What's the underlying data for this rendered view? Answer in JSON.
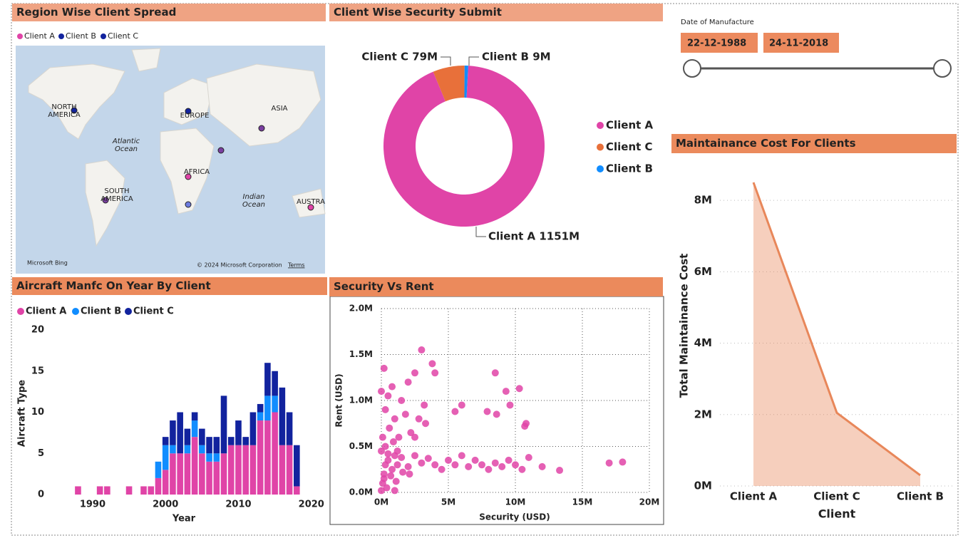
{
  "chart_data": [
    {
      "type": "map",
      "title": "Region Wise Client Spread",
      "series": [
        {
          "name": "Client A",
          "color": "#e044a7"
        },
        {
          "name": "Client B",
          "color": "#12239e"
        },
        {
          "name": "Client C",
          "color": "#12239e"
        }
      ],
      "labels": [
        "NORTH\nAMERICA",
        "EUROPE",
        "ASIA",
        "Atlantic\nOcean",
        "AFRICA",
        "SOUTH\nAMERICA",
        "Indian\nOcean",
        "AUSTRA"
      ],
      "attribution": [
        "Microsoft Bing",
        "© 2024 Microsoft Corporation",
        "Terms"
      ]
    },
    {
      "type": "pie",
      "title": "Client Wise Security Submit",
      "categories": [
        "Client A",
        "Client C",
        "Client B"
      ],
      "values": [
        1151,
        79,
        9
      ],
      "value_labels": [
        "Client A 1151M",
        "Client C 79M",
        "Client B 9M"
      ],
      "colors": [
        "#e044a7",
        "#e8703a",
        "#118dff"
      ]
    },
    {
      "type": "bar",
      "stacked": true,
      "title": "Aircraft Manfc On Year By Client",
      "x_label": "Year",
      "y_label": "Aircraft Type",
      "x": [
        1988,
        1991,
        1992,
        1995,
        1997,
        1998,
        1999,
        2000,
        2001,
        2002,
        2003,
        2004,
        2005,
        2006,
        2007,
        2008,
        2009,
        2010,
        2011,
        2012,
        2013,
        2014,
        2015,
        2016,
        2017,
        2018
      ],
      "series": [
        {
          "name": "Client A",
          "color": "#e044a7",
          "values": [
            1,
            1,
            1,
            1,
            1,
            1,
            2,
            3,
            5,
            5,
            5,
            7,
            5,
            4,
            4,
            5,
            6,
            6,
            6,
            6,
            9,
            9,
            10,
            6,
            6,
            1
          ]
        },
        {
          "name": "Client B",
          "color": "#118dff",
          "values": [
            0,
            0,
            0,
            0,
            0,
            0,
            2,
            3,
            1,
            0,
            1,
            2,
            1,
            1,
            1,
            0,
            0,
            0,
            0,
            0,
            1,
            3,
            2,
            0,
            0,
            0
          ]
        },
        {
          "name": "Client C",
          "color": "#12239e",
          "values": [
            0,
            0,
            0,
            0,
            0,
            0,
            0,
            1,
            3,
            5,
            2,
            1,
            2,
            2,
            2,
            7,
            1,
            3,
            1,
            4,
            1,
            4,
            3,
            7,
            4,
            5
          ]
        }
      ],
      "xlim": [
        1986,
        2021
      ],
      "xticks": [
        1990,
        2000,
        2010,
        2020
      ],
      "ylim": [
        0,
        20
      ],
      "yticks": [
        0,
        5,
        10,
        15,
        20
      ]
    },
    {
      "type": "scatter",
      "title": "Security Vs Rent",
      "x_label": "Security (USD)",
      "y_label": "Rent (USD)",
      "color": "#e044a7",
      "grid": true,
      "x": [
        0,
        0.1,
        0.2,
        0.3,
        0.5,
        0.8,
        1,
        1.2,
        1.5,
        2,
        2.5,
        3,
        3.5,
        4,
        4.5,
        5,
        5.5,
        6,
        6.5,
        7,
        7.5,
        8,
        8.5,
        9,
        9.5,
        10,
        10.5,
        11,
        12,
        13.3,
        17,
        18,
        0.2,
        0.5,
        1,
        1.5,
        2,
        2.5,
        3,
        3.2,
        3.8,
        4,
        0.1,
        0.3,
        0.6,
        0.9,
        1.3,
        1.8,
        2.2,
        2.8,
        3.3,
        8.5,
        8.6,
        9.3,
        10.3,
        10.7,
        10.8,
        6,
        5.5,
        7.9,
        9.6,
        0,
        0.2,
        0.4,
        0.7,
        1.1,
        1.6,
        2.1,
        0,
        0.3,
        0.8,
        1.2,
        2.5,
        0.5,
        1
      ],
      "y": [
        0.02,
        0.1,
        0.2,
        0.3,
        0.35,
        0.25,
        0.4,
        0.3,
        0.38,
        0.28,
        0.4,
        0.32,
        0.37,
        0.3,
        0.25,
        0.35,
        0.3,
        0.4,
        0.28,
        0.35,
        0.3,
        0.25,
        0.32,
        0.28,
        0.35,
        0.3,
        0.25,
        0.38,
        0.28,
        0.24,
        0.32,
        0.33,
        1.35,
        1.05,
        0.8,
        1.0,
        1.2,
        1.3,
        1.55,
        0.95,
        1.4,
        1.3,
        0.6,
        0.5,
        0.7,
        0.55,
        0.6,
        0.85,
        0.65,
        0.8,
        0.75,
        1.3,
        0.85,
        1.1,
        1.13,
        0.72,
        0.75,
        0.95,
        0.88,
        0.88,
        0.95,
        0.45,
        0.15,
        0.05,
        0.18,
        0.12,
        0.22,
        0.2,
        1.1,
        0.9,
        1.15,
        0.45,
        0.6,
        0.42,
        0.02
      ],
      "xlim": [
        0,
        20
      ],
      "xticks": [
        {
          "value": 0,
          "label": "0M"
        },
        {
          "value": 5,
          "label": "5M"
        },
        {
          "value": 10,
          "label": "10M"
        },
        {
          "value": 15,
          "label": "15M"
        },
        {
          "value": 20,
          "label": "20M"
        }
      ],
      "ylim": [
        0,
        2
      ],
      "yticks": [
        {
          "value": 0,
          "label": "0.0M"
        },
        {
          "value": 0.5,
          "label": "0.5M"
        },
        {
          "value": 1,
          "label": "1.0M"
        },
        {
          "value": 1.5,
          "label": "1.5M"
        },
        {
          "value": 2,
          "label": "2.0M"
        }
      ]
    },
    {
      "type": "area",
      "title": "Maintainance Cost For Clients",
      "x_label": "Client",
      "y_label": "Total Maintainance Cost",
      "color": "#e8875a",
      "grid": true,
      "categories": [
        "Client A",
        "Client C",
        "Client B"
      ],
      "values": [
        8.5,
        2.05,
        0.3
      ],
      "ylim": [
        0,
        8.8
      ],
      "yticks": [
        {
          "value": 0,
          "label": "0M"
        },
        {
          "value": 2,
          "label": "2M"
        },
        {
          "value": 4,
          "label": "4M"
        },
        {
          "value": 6,
          "label": "6M"
        },
        {
          "value": 8,
          "label": "8M"
        }
      ]
    }
  ],
  "slicer": {
    "title": "Date of Manufacture",
    "start": "22-12-1988",
    "end": "24-11-2018"
  }
}
